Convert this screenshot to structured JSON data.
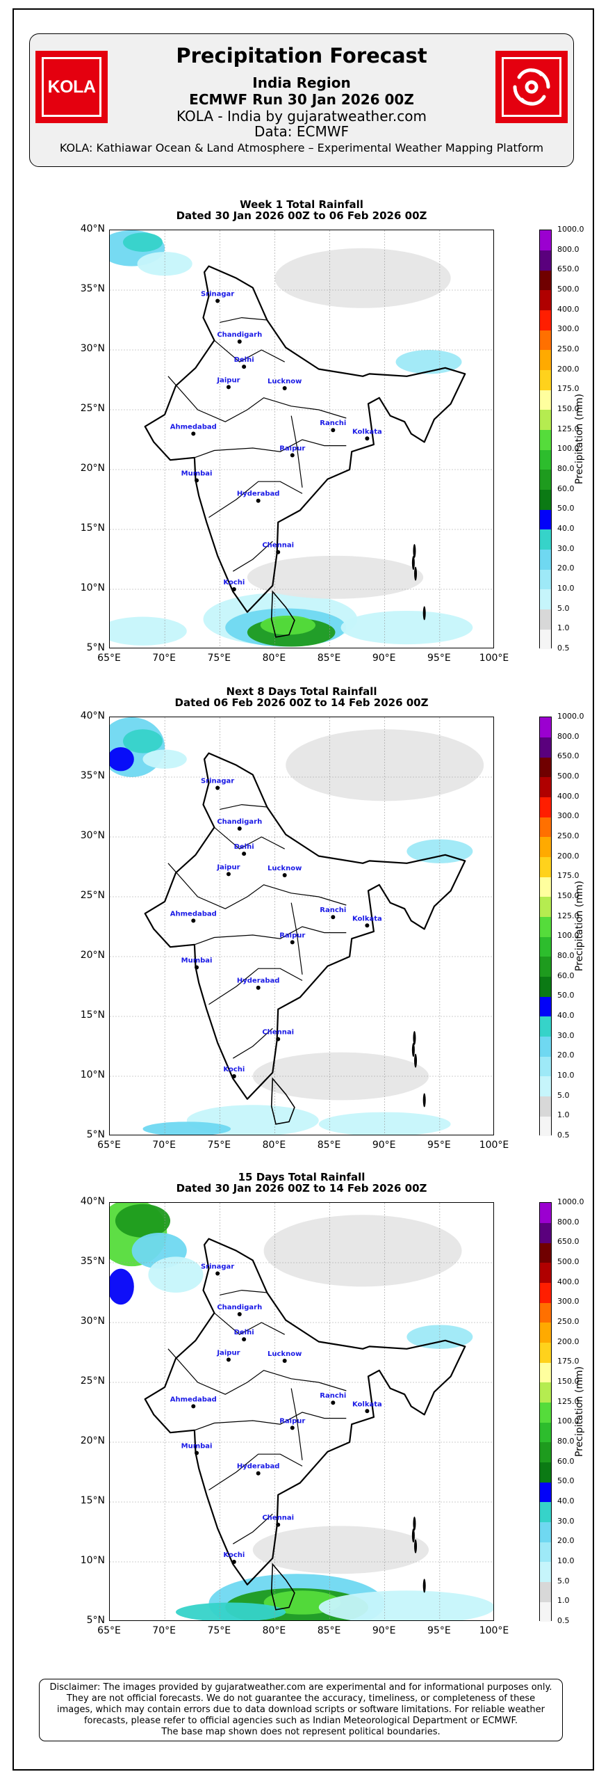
{
  "header": {
    "title": "Precipitation Forecast",
    "region": "India Region",
    "run": "ECMWF Run 30 Jan 2026 00Z",
    "site": "KOLA - India by gujaratweather.com",
    "data_source": "Data: ECMWF",
    "platform": "KOLA: Kathiawar Ocean & Land Atmosphere – Experimental Weather Mapping Platform",
    "logo_left_text": "KOLA",
    "logo_left_icon": "kola-logo",
    "logo_right_icon": "cyclone-symbol-icon",
    "logo_color": "#e4000f"
  },
  "axes": {
    "lat_ticks": [
      "40°N",
      "35°N",
      "30°N",
      "25°N",
      "20°N",
      "15°N",
      "10°N",
      "5°N"
    ],
    "lon_ticks": [
      "65°E",
      "70°E",
      "75°E",
      "80°E",
      "85°E",
      "90°E",
      "95°E",
      "100°E"
    ],
    "lat_range": [
      5,
      40
    ],
    "lon_range": [
      65,
      100
    ]
  },
  "colorbar": {
    "title": "Precipitation (mm)",
    "levels": [
      "0.5",
      "1.0",
      "5.0",
      "10.0",
      "20.0",
      "30.0",
      "40.0",
      "50.0",
      "60.0",
      "80.0",
      "100.0",
      "125.0",
      "150.0",
      "175.0",
      "200.0",
      "250.0",
      "300.0",
      "400.0",
      "500.0",
      "650.0",
      "800.0",
      "1000.0"
    ],
    "colors": [
      "#f5f5f5",
      "#d8d8d8",
      "#c6f5fb",
      "#9ee9f7",
      "#6fd8f1",
      "#36d3c9",
      "#0202f8",
      "#0b7a14",
      "#1e9b1e",
      "#2dbd2d",
      "#55dc3b",
      "#b5ec50",
      "#ffff9e",
      "#ffd21c",
      "#ffaa00",
      "#ff7000",
      "#ff1e00",
      "#b00000",
      "#700000",
      "#5a007d",
      "#9b00d0",
      "#dd90e6"
    ]
  },
  "cities": [
    {
      "name": "Srinagar",
      "lon": 74.8,
      "lat": 34.1
    },
    {
      "name": "Chandigarh",
      "lon": 76.8,
      "lat": 30.7
    },
    {
      "name": "Delhi",
      "lon": 77.2,
      "lat": 28.6
    },
    {
      "name": "Jaipur",
      "lon": 75.8,
      "lat": 26.9
    },
    {
      "name": "Lucknow",
      "lon": 80.9,
      "lat": 26.8
    },
    {
      "name": "Ahmedabad",
      "lon": 72.6,
      "lat": 23.0
    },
    {
      "name": "Ranchi",
      "lon": 85.3,
      "lat": 23.3
    },
    {
      "name": "Kolkata",
      "lon": 88.4,
      "lat": 22.6
    },
    {
      "name": "Raipur",
      "lon": 81.6,
      "lat": 21.2
    },
    {
      "name": "Mumbai",
      "lon": 72.9,
      "lat": 19.1
    },
    {
      "name": "Hyderabad",
      "lon": 78.5,
      "lat": 17.4
    },
    {
      "name": "Chennai",
      "lon": 80.3,
      "lat": 13.1
    },
    {
      "name": "Kochi",
      "lon": 76.3,
      "lat": 10.0
    }
  ],
  "panels": [
    {
      "title": "Week 1 Total Rainfall",
      "subtitle": "Dated 30 Jan 2026 00Z to 06 Feb 2026 00Z"
    },
    {
      "title": "Next 8 Days Total Rainfall",
      "subtitle": "Dated 06 Feb 2026 00Z to 14 Feb 2026 00Z"
    },
    {
      "title": "15 Days Total Rainfall",
      "subtitle": "Dated 30 Jan 2026 00Z to 14 Feb 2026 00Z"
    }
  ],
  "disclaimer": {
    "line1": "Disclaimer: The images provided by gujaratweather.com are experimental and for informational purposes only.",
    "line2": "They are not official forecasts. We do not guarantee the accuracy, timeliness, or completeness of these",
    "line3": "images, which may contain errors due to data download scripts or software limitations. For reliable weather",
    "line4": "forecasts, please refer to official agencies such as Indian Meteorological Department or ECMWF.",
    "line5": "The base map shown does not represent political boundaries."
  }
}
